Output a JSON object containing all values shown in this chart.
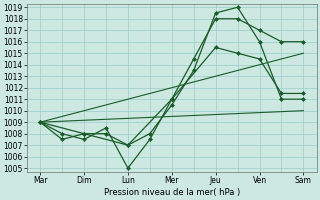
{
  "xlabel": "Pression niveau de la mer( hPa )",
  "bg_color": "#cce8e0",
  "grid_color": "#99cccc",
  "line_color": "#1a5c2a",
  "ylim": [
    1005,
    1019
  ],
  "x_labels": [
    "Mar",
    "Dim",
    "Lun",
    "Mer",
    "Jeu",
    "Ven",
    "Sam"
  ],
  "series": [
    {
      "x": [
        0,
        0.5,
        1,
        1.5,
        2,
        2.5,
        3,
        3.5,
        4,
        4.5,
        5,
        5.5,
        6
      ],
      "y": [
        1009,
        1008,
        1007.5,
        1008.5,
        1005,
        1007.5,
        1011,
        1014.5,
        1018,
        1018,
        1017,
        1016,
        1016
      ],
      "marker": "D",
      "markersize": 2,
      "linewidth": 0.9
    },
    {
      "x": [
        0,
        0.5,
        1,
        1.5,
        2,
        2.5,
        3,
        3.5,
        4,
        4.5,
        5,
        5.5,
        6
      ],
      "y": [
        1009,
        1007.5,
        1008,
        1008,
        1007,
        1008,
        1010.5,
        1013.5,
        1018.5,
        1019,
        1016,
        1011,
        1011
      ],
      "marker": "D",
      "markersize": 2,
      "linewidth": 0.9
    },
    {
      "x": [
        0,
        1,
        2,
        3,
        4,
        4.5,
        5,
        5.5,
        6
      ],
      "y": [
        1009,
        1008,
        1007,
        1011,
        1015.5,
        1015,
        1014.5,
        1011.5,
        1011.5
      ],
      "marker": "D",
      "markersize": 2,
      "linewidth": 0.9
    },
    {
      "x": [
        0,
        6
      ],
      "y": [
        1009,
        1015
      ],
      "marker": null,
      "markersize": 0,
      "linewidth": 0.8,
      "linestyle": "-"
    },
    {
      "x": [
        0,
        6
      ],
      "y": [
        1009,
        1010
      ],
      "marker": null,
      "markersize": 0,
      "linewidth": 0.8,
      "linestyle": "-"
    }
  ]
}
